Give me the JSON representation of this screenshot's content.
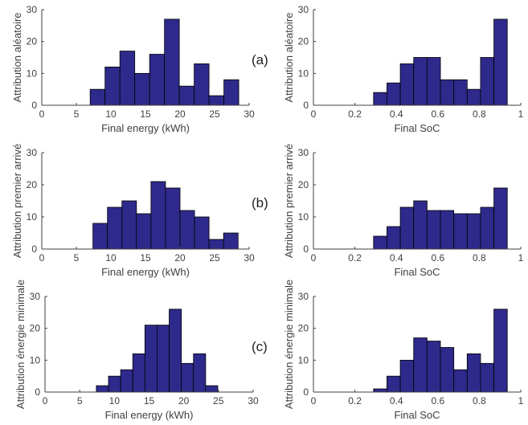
{
  "colors": {
    "bar_fill": "#2E2A8C",
    "bar_stroke": "#000000",
    "axis": "#404040"
  },
  "row_labels": [
    "(a)",
    "(b)",
    "(c)"
  ],
  "chart_data": [
    {
      "type": "bar",
      "xlabel": "Final energy (kWh)",
      "ylabel": "Attribution aléatoire",
      "xlim": [
        0,
        30
      ],
      "ylim": [
        0,
        30
      ],
      "xticks": [
        0,
        5,
        10,
        15,
        20,
        25,
        30
      ],
      "yticks": [
        0,
        10,
        20,
        30
      ],
      "bin_start": 7,
      "bin_width": 2.15,
      "values": [
        5,
        12,
        17,
        10,
        16,
        27,
        6,
        13,
        3,
        8
      ]
    },
    {
      "type": "bar",
      "xlabel": "Final SoC",
      "ylabel": "Attribution aléatoire",
      "xlim": [
        0,
        1
      ],
      "ylim": [
        0,
        30
      ],
      "xticks": [
        0,
        0.2,
        0.4,
        0.6,
        0.8,
        1
      ],
      "yticks": [
        0,
        10,
        20,
        30
      ],
      "bin_start": 0.29,
      "bin_width": 0.0645,
      "values": [
        4,
        7,
        13,
        15,
        15,
        8,
        8,
        5,
        15,
        27
      ]
    },
    {
      "type": "bar",
      "xlabel": "Final energy (kWh)",
      "ylabel": "Attribution premier arrivé",
      "xlim": [
        0,
        30
      ],
      "ylim": [
        0,
        30
      ],
      "xticks": [
        0,
        5,
        10,
        15,
        20,
        25,
        30
      ],
      "yticks": [
        0,
        10,
        20,
        30
      ],
      "bin_start": 7.4,
      "bin_width": 2.1,
      "values": [
        8,
        13,
        15,
        11,
        21,
        19,
        12,
        10,
        3,
        5
      ]
    },
    {
      "type": "bar",
      "xlabel": "Final SoC",
      "ylabel": "Attribution premier arrivé",
      "xlim": [
        0,
        1
      ],
      "ylim": [
        0,
        30
      ],
      "xticks": [
        0,
        0.2,
        0.4,
        0.6,
        0.8,
        1
      ],
      "yticks": [
        0,
        10,
        20,
        30
      ],
      "bin_start": 0.29,
      "bin_width": 0.0645,
      "values": [
        4,
        7,
        13,
        15,
        12,
        12,
        11,
        11,
        13,
        19
      ]
    },
    {
      "type": "bar",
      "xlabel": "Final energy (kWh)",
      "ylabel": "Attribution énergie minimale",
      "xlim": [
        0,
        30
      ],
      "ylim": [
        0,
        30
      ],
      "xticks": [
        0,
        5,
        10,
        15,
        20,
        25,
        30
      ],
      "yticks": [
        0,
        10,
        20,
        30
      ],
      "bin_start": 7.4,
      "bin_width": 1.75,
      "values": [
        2,
        5,
        7,
        12,
        21,
        21,
        26,
        9,
        12,
        2
      ]
    },
    {
      "type": "bar",
      "xlabel": "Final SoC",
      "ylabel": "Attribution énergie minimale",
      "xlim": [
        0,
        1
      ],
      "ylim": [
        0,
        30
      ],
      "xticks": [
        0,
        0.2,
        0.4,
        0.6,
        0.8,
        1
      ],
      "yticks": [
        0,
        10,
        20,
        30
      ],
      "bin_start": 0.29,
      "bin_width": 0.0645,
      "values": [
        1,
        5,
        10,
        17,
        16,
        14,
        7,
        12,
        9,
        26
      ]
    }
  ]
}
